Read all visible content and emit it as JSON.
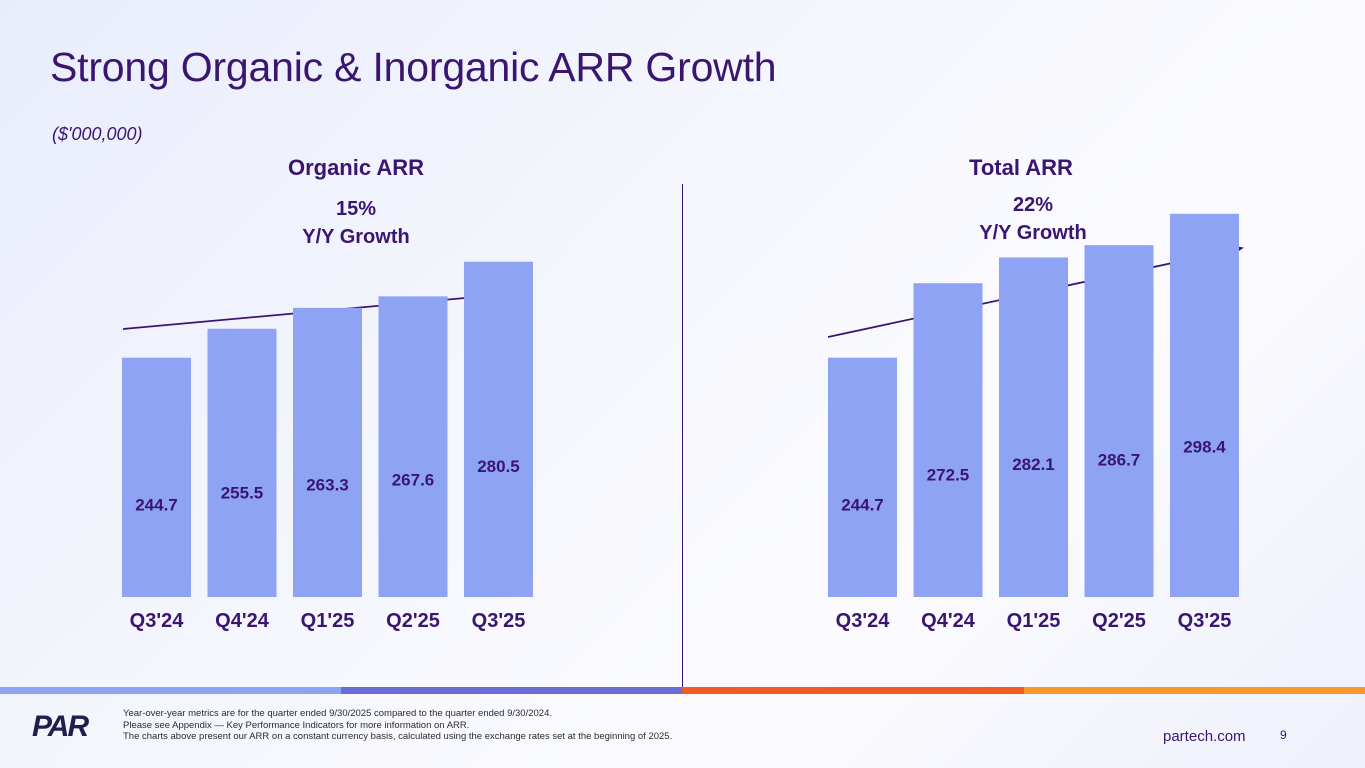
{
  "title": "Strong Organic & Inorganic ARR Growth",
  "units": "($'000,000)",
  "colors": {
    "bar": "#8fa3f5",
    "text": "#3a1670",
    "stripe": [
      "#8fa3f5",
      "#6b6dd6",
      "#f25c24",
      "#f7982a"
    ]
  },
  "charts": [
    {
      "title": "Organic ARR",
      "growth_value": "15%",
      "growth_label": "Y/Y Growth"
    },
    {
      "title": "Total ARR",
      "growth_value": "22%",
      "growth_label": "Y/Y Growth"
    }
  ],
  "chart_data": [
    {
      "type": "bar",
      "title": "Organic ARR",
      "categories": [
        "Q3'24",
        "Q4'24",
        "Q1'25",
        "Q2'25",
        "Q3'25"
      ],
      "values": [
        244.7,
        255.5,
        263.3,
        267.6,
        280.5
      ],
      "annotation": "15% Y/Y Growth",
      "ylabel": "($'000,000)"
    },
    {
      "type": "bar",
      "title": "Total ARR",
      "categories": [
        "Q3'24",
        "Q4'24",
        "Q1'25",
        "Q2'25",
        "Q3'25"
      ],
      "values": [
        244.7,
        272.5,
        282.1,
        286.7,
        298.4
      ],
      "annotation": "22% Y/Y Growth",
      "ylabel": "($'000,000)"
    }
  ],
  "footer": {
    "logo_text": "PAR",
    "notes": [
      "Year-over-year metrics are for the quarter ended 9/30/2025 compared to the quarter ended 9/30/2024.",
      "Please see Appendix — Key Performance Indicators for more information on ARR.",
      "The charts above present our ARR on a constant currency basis, calculated using the exchange rates set at the beginning of 2025."
    ],
    "website": "partech.com",
    "page_number": "9"
  }
}
